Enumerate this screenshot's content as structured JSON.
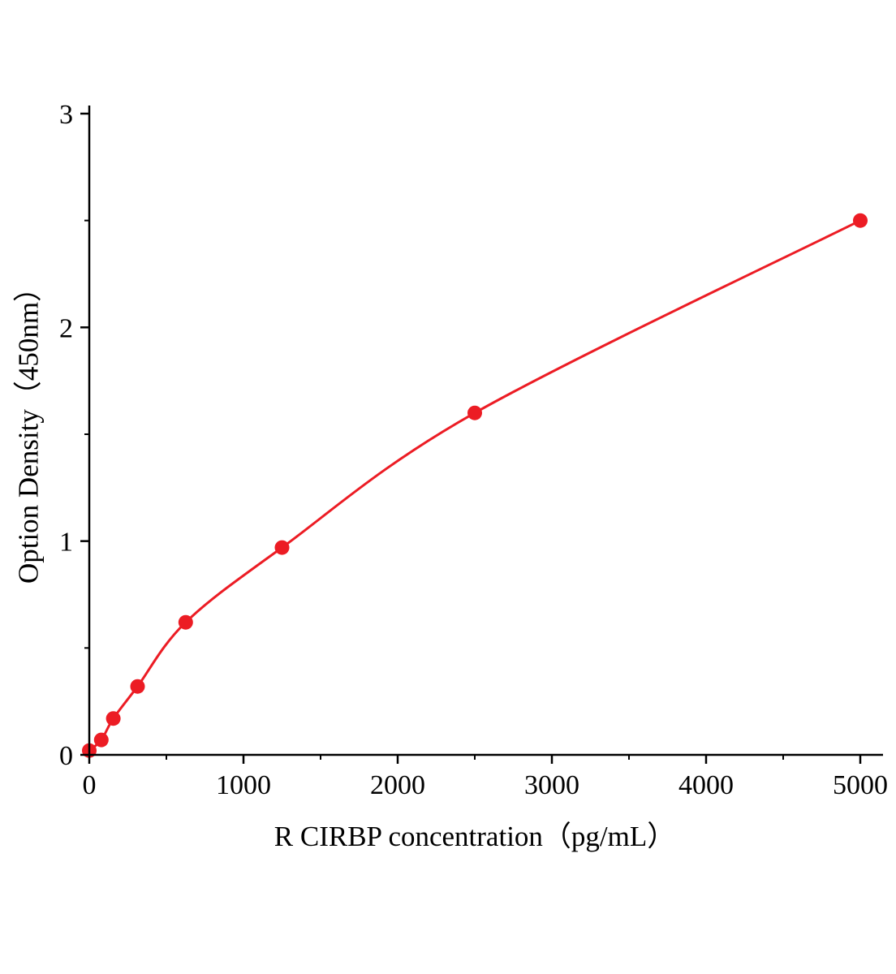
{
  "figure": {
    "background": "#ffffff",
    "xlabel": "R CIRBP concentration（pg/mL）",
    "ylabel": "Option Density（450nm）"
  },
  "chart_data": {
    "type": "scatter",
    "title": "",
    "xlabel": "R CIRBP concentration（pg/mL）",
    "ylabel": "Option Density（450nm）",
    "x": [
      0,
      78,
      156,
      313,
      625,
      1250,
      2500,
      5000
    ],
    "y": [
      0.02,
      0.07,
      0.17,
      0.32,
      0.62,
      0.97,
      1.6,
      2.5
    ],
    "xlim": [
      0,
      5000
    ],
    "ylim": [
      0,
      3
    ],
    "x_ticks": [
      0,
      1000,
      2000,
      3000,
      4000,
      5000
    ],
    "y_ticks": [
      0,
      1,
      2,
      3
    ],
    "x_minor_step": 500,
    "y_minor_step": 0.5,
    "grid": false,
    "legend": "none",
    "curve": "smooth fitted line through points",
    "line_color": "#ec1c24",
    "marker_color": "#ec1c24",
    "marker_radius": 9,
    "axis_color": "#000000"
  }
}
